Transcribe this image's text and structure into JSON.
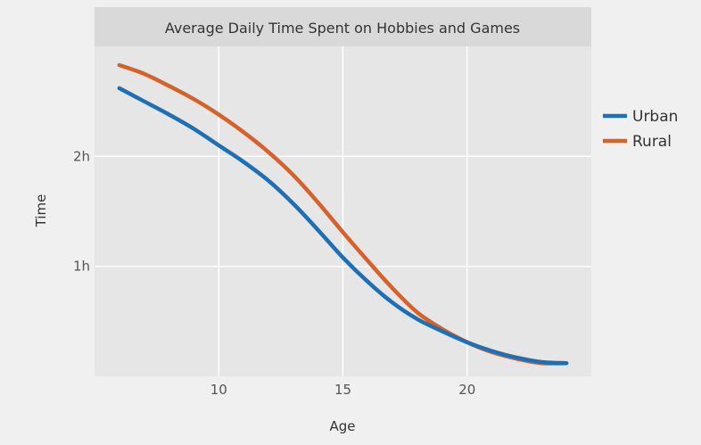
{
  "chart_data": {
    "type": "line",
    "title": "Average Daily Time Spent on Hobbies and Games",
    "xlabel": "Age",
    "ylabel": "Time",
    "xlim": [
      5,
      25
    ],
    "ylim": [
      0.0,
      3.0
    ],
    "x_ticks": [
      {
        "value": 10,
        "label": "10"
      },
      {
        "value": 15,
        "label": "15"
      },
      {
        "value": 20,
        "label": "20"
      }
    ],
    "y_ticks": [
      {
        "value": 1,
        "label": "1h"
      },
      {
        "value": 2,
        "label": "2h"
      }
    ],
    "grid": true,
    "legend_position": "right",
    "series": [
      {
        "name": "Urban",
        "color": "#1f6fb4",
        "x": [
          6,
          7,
          8,
          9,
          10,
          11,
          12,
          13,
          14,
          15,
          16,
          17,
          18,
          19,
          20,
          21,
          22,
          23,
          24
        ],
        "y": [
          2.62,
          2.5,
          2.38,
          2.25,
          2.1,
          1.95,
          1.78,
          1.57,
          1.33,
          1.08,
          0.86,
          0.67,
          0.52,
          0.41,
          0.31,
          0.23,
          0.17,
          0.13,
          0.12
        ]
      },
      {
        "name": "Rural",
        "color": "#d4622a",
        "x": [
          6,
          7,
          8,
          9,
          10,
          11,
          12,
          13,
          14,
          15,
          16,
          17,
          18,
          19,
          20,
          21,
          22,
          23,
          24
        ],
        "y": [
          2.83,
          2.75,
          2.64,
          2.52,
          2.38,
          2.22,
          2.04,
          1.83,
          1.58,
          1.31,
          1.05,
          0.8,
          0.58,
          0.43,
          0.31,
          0.22,
          0.16,
          0.12,
          0.12
        ]
      }
    ]
  }
}
